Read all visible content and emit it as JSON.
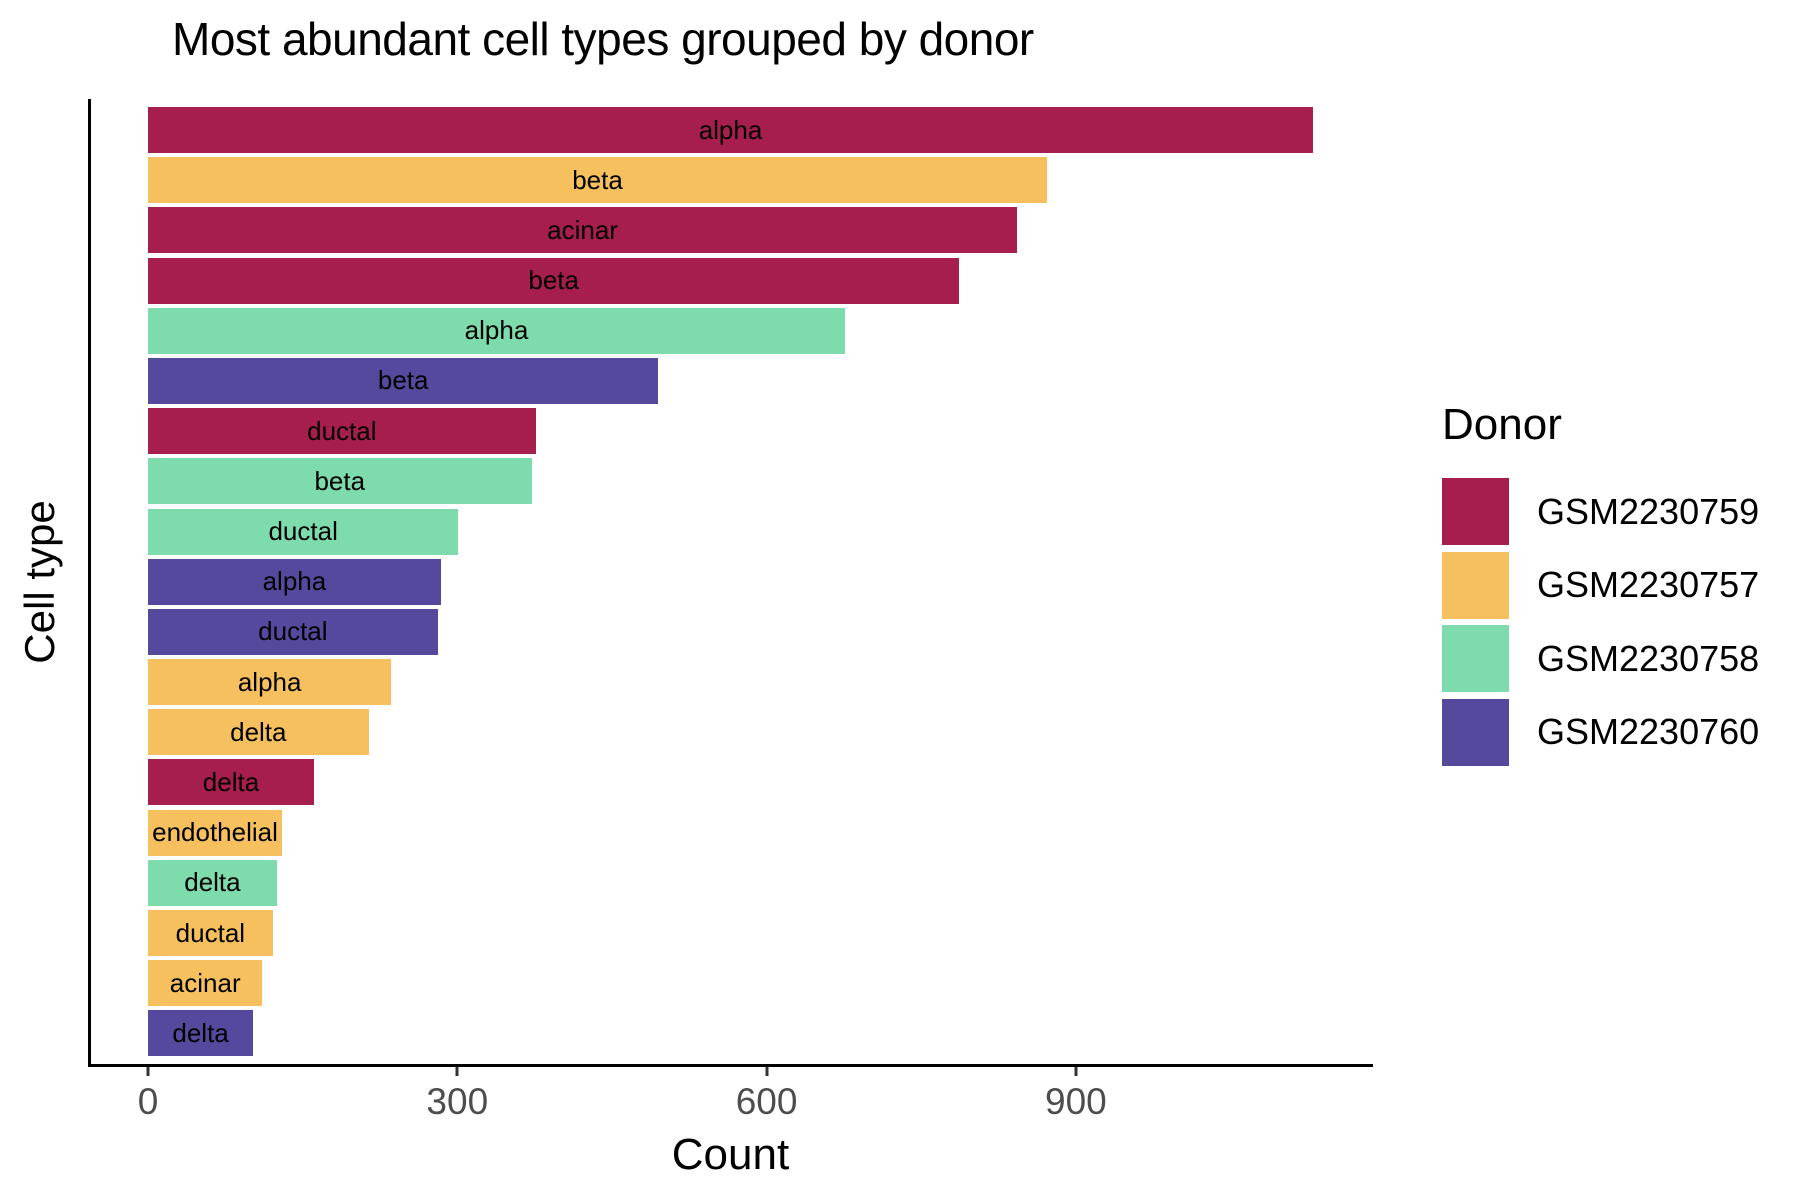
{
  "title": "Most abundant cell types grouped by donor",
  "chart_data": {
    "type": "bar",
    "orientation": "horizontal",
    "title": "Most abundant cell types grouped by donor",
    "xlabel": "Count",
    "ylabel": "Cell type",
    "x_ticks": [
      0,
      300,
      600,
      900
    ],
    "xlim": [
      -56.5,
      1186.5
    ],
    "grid": false,
    "legend": {
      "title": "Donor",
      "position": "right",
      "entries": [
        {
          "label": "GSM2230759",
          "color": "#A61E4D"
        },
        {
          "label": "GSM2230757",
          "color": "#F6C05E"
        },
        {
          "label": "GSM2230758",
          "color": "#7EDBAC"
        },
        {
          "label": "GSM2230760",
          "color": "#55499D"
        }
      ]
    },
    "bars": [
      {
        "cell_type": "alpha",
        "donor": "GSM2230759",
        "count": 1130
      },
      {
        "cell_type": "beta",
        "donor": "GSM2230757",
        "count": 872
      },
      {
        "cell_type": "acinar",
        "donor": "GSM2230759",
        "count": 843
      },
      {
        "cell_type": "beta",
        "donor": "GSM2230759",
        "count": 787
      },
      {
        "cell_type": "alpha",
        "donor": "GSM2230758",
        "count": 676
      },
      {
        "cell_type": "beta",
        "donor": "GSM2230760",
        "count": 495
      },
      {
        "cell_type": "ductal",
        "donor": "GSM2230759",
        "count": 376
      },
      {
        "cell_type": "beta",
        "donor": "GSM2230758",
        "count": 372
      },
      {
        "cell_type": "ductal",
        "donor": "GSM2230758",
        "count": 301
      },
      {
        "cell_type": "alpha",
        "donor": "GSM2230760",
        "count": 284
      },
      {
        "cell_type": "ductal",
        "donor": "GSM2230760",
        "count": 281
      },
      {
        "cell_type": "alpha",
        "donor": "GSM2230757",
        "count": 236
      },
      {
        "cell_type": "delta",
        "donor": "GSM2230757",
        "count": 214
      },
      {
        "cell_type": "delta",
        "donor": "GSM2230759",
        "count": 161
      },
      {
        "cell_type": "endothelial",
        "donor": "GSM2230757",
        "count": 130
      },
      {
        "cell_type": "delta",
        "donor": "GSM2230758",
        "count": 125
      },
      {
        "cell_type": "ductal",
        "donor": "GSM2230757",
        "count": 121
      },
      {
        "cell_type": "acinar",
        "donor": "GSM2230757",
        "count": 111
      },
      {
        "cell_type": "delta",
        "donor": "GSM2230760",
        "count": 102
      }
    ]
  }
}
